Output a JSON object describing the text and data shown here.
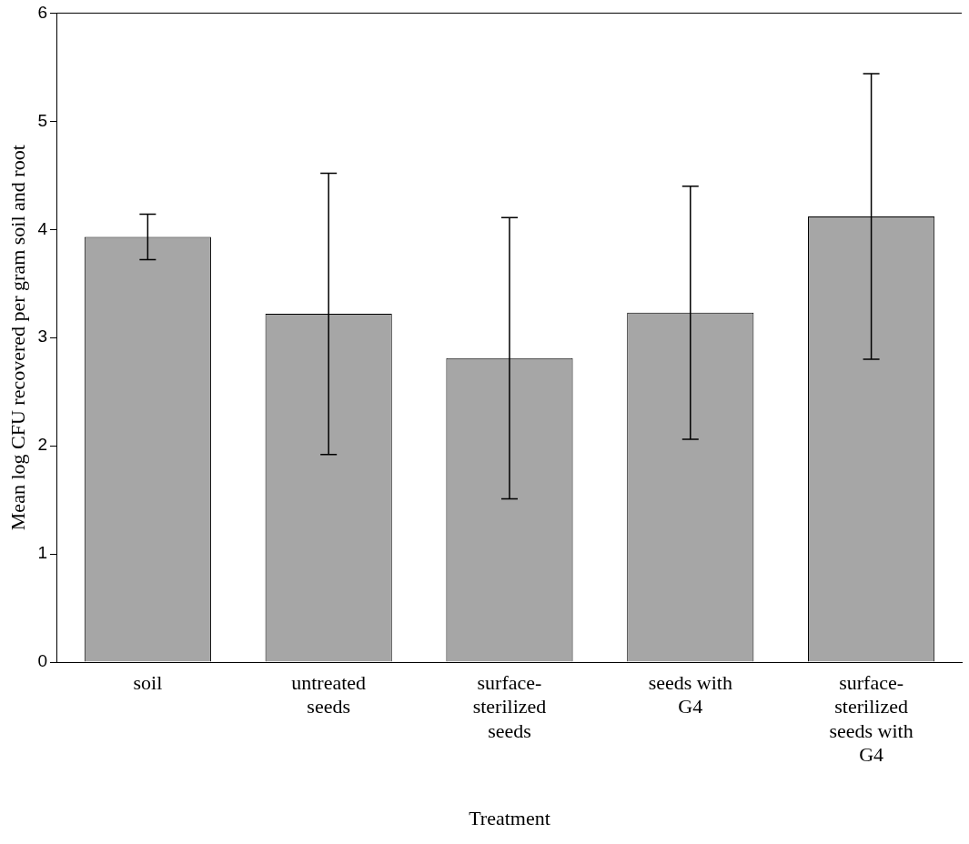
{
  "chart_data": {
    "type": "bar",
    "xlabel": "Treatment",
    "ylabel": "Mean log CFU recovered per gram soil and root",
    "categories": [
      "soil",
      "untreated seeds",
      "surface-sterilized seeds",
      "seeds with G4",
      "surface-sterilized seeds with G4"
    ],
    "values": [
      3.93,
      3.22,
      2.81,
      3.23,
      4.12
    ],
    "errors": [
      0.21,
      1.3,
      1.3,
      1.17,
      1.32
    ],
    "color": "#a6a6a6",
    "ylim": [
      0,
      6
    ],
    "yticks": [
      0,
      1,
      2,
      3,
      4,
      5,
      6
    ],
    "grid": false
  }
}
